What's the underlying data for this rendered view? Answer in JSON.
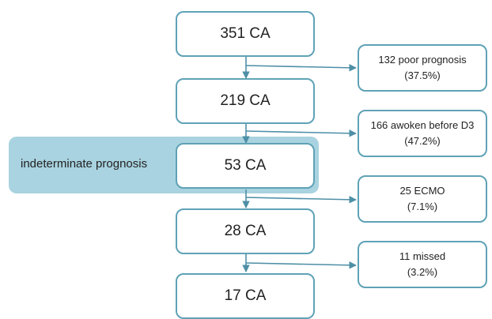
{
  "highlight": {
    "label": "indeterminate prognosis"
  },
  "main_boxes": [
    "351 CA",
    "219 CA",
    "53 CA",
    "28 CA",
    "17 CA"
  ],
  "side_boxes": [
    {
      "line1": "132 poor prognosis",
      "line2": "(37.5%)"
    },
    {
      "line1": "166 awoken before D3",
      "line2": "(47.2%)"
    },
    {
      "line1": "25 ECMO",
      "line2": "(7.1%)"
    },
    {
      "line1": "11 missed",
      "line2": "(3.2%)"
    }
  ],
  "colors": {
    "box_border": "#5fa2b6",
    "arrow": "#4d8fa6",
    "highlight_fill": "#a9d3e0"
  }
}
